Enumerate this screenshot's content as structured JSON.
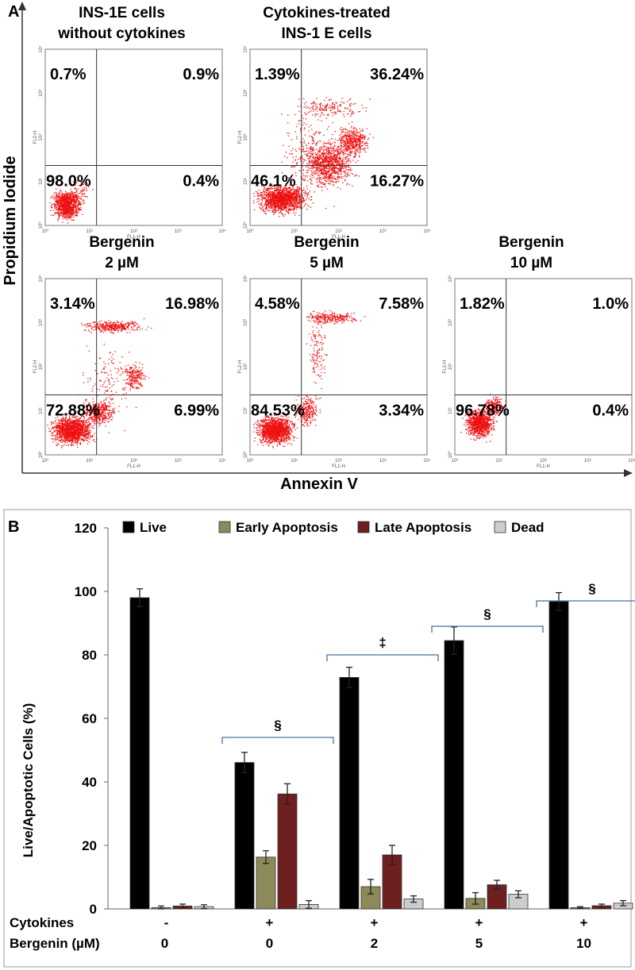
{
  "panel_a": {
    "label": "A",
    "y_axis_label": "Propidium Iodide",
    "x_axis_label": "Annexin V",
    "plot_y_label": "FL2-H",
    "plot_x_label": "FL1-H",
    "plots": [
      {
        "title": [
          "INS-1E cells",
          "without cytokines"
        ],
        "ul": "0.7%",
        "ur": "0.9%",
        "ll": "98.0%",
        "lr": "0.4%"
      },
      {
        "title": [
          "Cytokines-treated",
          "INS-1 E cells"
        ],
        "ul": "1.39%",
        "ur": "36.24%",
        "ll": "46.1%",
        "lr": "16.27%"
      },
      {
        "title": [
          "Bergenin",
          "2 µM"
        ],
        "ul": "3.14%",
        "ur": "16.98%",
        "ll": "72.88%",
        "lr": "6.99%"
      },
      {
        "title": [
          "Bergenin",
          "5 µM"
        ],
        "ul": "4.58%",
        "ur": "7.58%",
        "ll": "84.53%",
        "lr": "3.34%"
      },
      {
        "title": [
          "Bergenin",
          "10 µM"
        ],
        "ul": "1.82%",
        "ur": "1.0%",
        "ll": "96.78%",
        "lr": "0.4%"
      }
    ]
  },
  "chart_data": {
    "type": "bar",
    "panel_label": "B",
    "ylabel": "Live/Apoptotic Cells  (%)",
    "ylim": [
      0,
      120
    ],
    "yticks": [
      0,
      20,
      40,
      60,
      80,
      100,
      120
    ],
    "legend_position": "top",
    "categories": [
      "1",
      "2",
      "3",
      "4",
      "5"
    ],
    "row_labels": [
      {
        "label": "Cytokines",
        "values": [
          "-",
          "+",
          "+",
          "+",
          "+"
        ]
      },
      {
        "label": "Bergenin (µM)",
        "values": [
          "0",
          "0",
          "2",
          "5",
          "10"
        ]
      }
    ],
    "series": [
      {
        "name": "Live",
        "color": "#000000",
        "values": [
          98.0,
          46.1,
          72.9,
          84.5,
          96.8
        ],
        "errors": [
          2.8,
          3.2,
          3.2,
          4.3,
          2.8
        ]
      },
      {
        "name": "Early Apoptosis",
        "color": "#8c8a5a",
        "values": [
          0.4,
          16.3,
          7.0,
          3.3,
          0.4
        ],
        "errors": [
          0.5,
          2.0,
          2.3,
          1.8,
          0.3
        ]
      },
      {
        "name": "Late Apoptosis",
        "color": "#6e1f1f",
        "values": [
          0.9,
          36.2,
          17.0,
          7.6,
          1.0
        ],
        "errors": [
          0.6,
          3.2,
          3.0,
          1.4,
          0.5
        ]
      },
      {
        "name": "Dead",
        "color": "#cccccc",
        "values": [
          0.7,
          1.4,
          3.1,
          4.6,
          1.8
        ],
        "errors": [
          0.6,
          1.2,
          1.0,
          1.1,
          0.8
        ]
      }
    ],
    "significance": [
      {
        "category": 1,
        "symbol": "§",
        "y": 54
      },
      {
        "category": 2,
        "symbol": "‡",
        "y": 80
      },
      {
        "category": 3,
        "symbol": "§",
        "y": 89
      },
      {
        "category": 4,
        "symbol": "§",
        "y": 97
      }
    ]
  }
}
